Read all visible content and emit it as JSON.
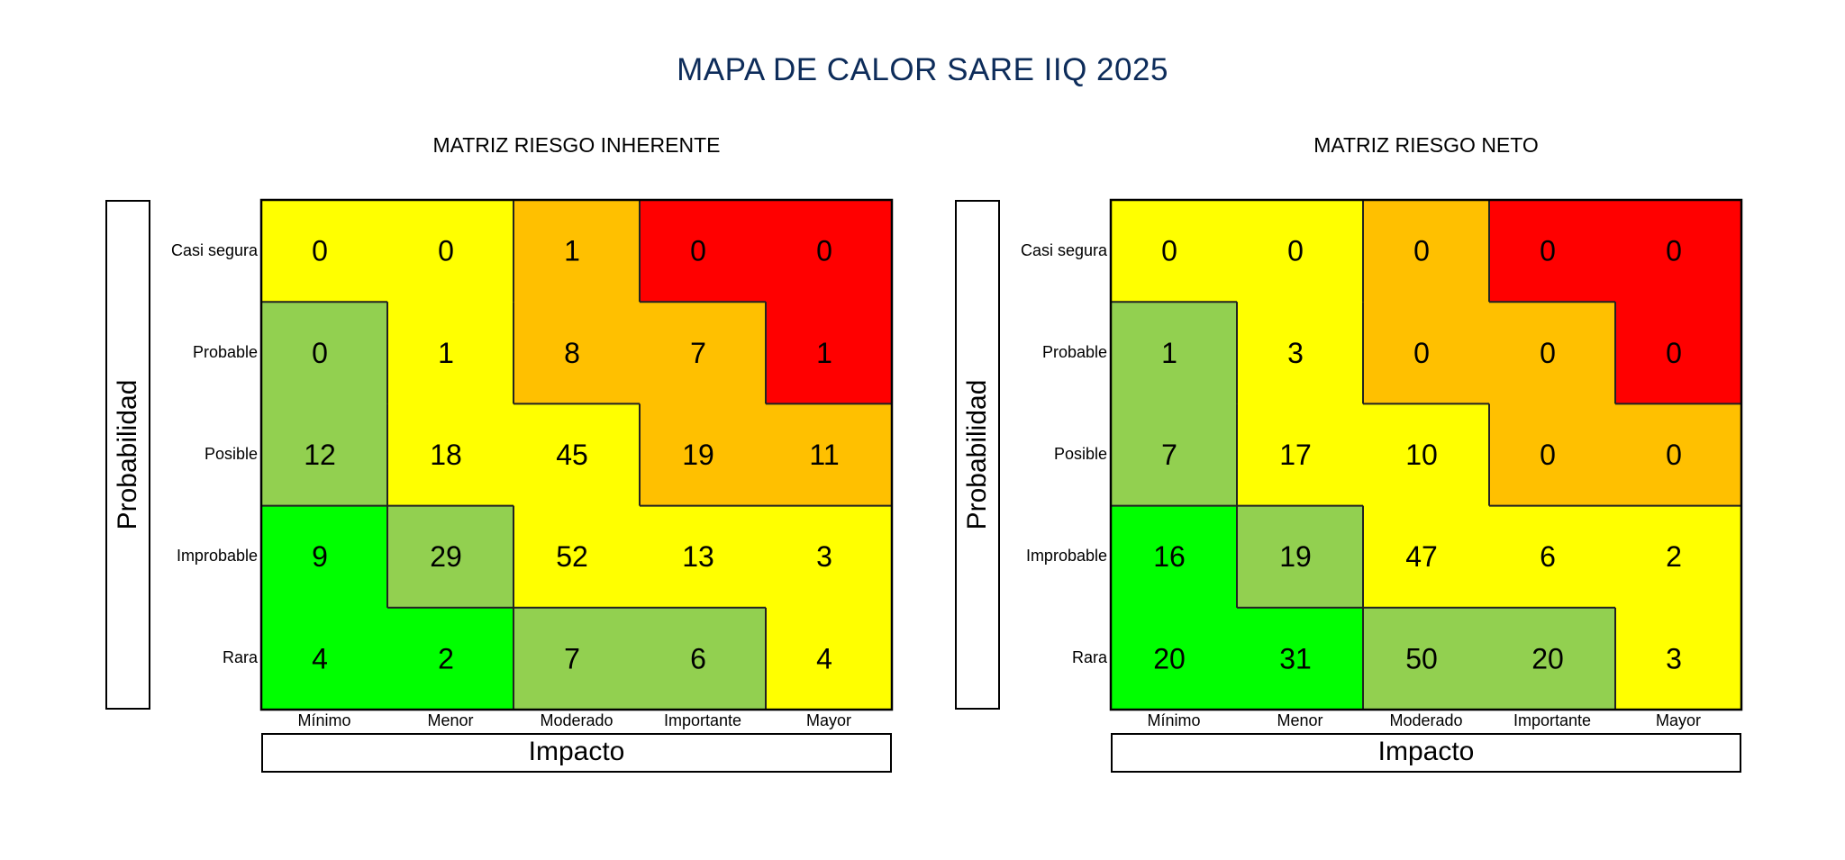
{
  "title": "MAPA DE CALOR SARE IIQ 2025",
  "chart_data": [
    {
      "type": "heatmap",
      "title": "MATRIZ RIESGO INHERENTE",
      "xlabel": "Impacto",
      "ylabel": "Probabilidad",
      "x_categories": [
        "Mínimo",
        "Menor",
        "Moderado",
        "Importante",
        "Mayor"
      ],
      "y_categories": [
        "Casi segura",
        "Probable",
        "Posible",
        "Improbable",
        "Rara"
      ],
      "values": [
        [
          0,
          0,
          1,
          0,
          0
        ],
        [
          0,
          1,
          8,
          7,
          1
        ],
        [
          12,
          18,
          45,
          19,
          11
        ],
        [
          9,
          29,
          52,
          13,
          3
        ],
        [
          4,
          2,
          7,
          6,
          4
        ]
      ],
      "zones": [
        [
          "Y",
          "Y",
          "O",
          "R",
          "R"
        ],
        [
          "L",
          "Y",
          "O",
          "O",
          "R"
        ],
        [
          "L",
          "Y",
          "Y",
          "O",
          "O"
        ],
        [
          "G",
          "L",
          "Y",
          "Y",
          "Y"
        ],
        [
          "G",
          "G",
          "L",
          "L",
          "Y"
        ]
      ]
    },
    {
      "type": "heatmap",
      "title": "MATRIZ RIESGO NETO",
      "xlabel": "Impacto",
      "ylabel": "Probabilidad",
      "x_categories": [
        "Mínimo",
        "Menor",
        "Moderado",
        "Importante",
        "Mayor"
      ],
      "y_categories": [
        "Casi segura",
        "Probable",
        "Posible",
        "Improbable",
        "Rara"
      ],
      "values": [
        [
          0,
          0,
          0,
          0,
          0
        ],
        [
          1,
          3,
          0,
          0,
          0
        ],
        [
          7,
          17,
          10,
          0,
          0
        ],
        [
          16,
          19,
          47,
          6,
          2
        ],
        [
          20,
          31,
          50,
          20,
          3
        ]
      ],
      "zones": [
        [
          "Y",
          "Y",
          "O",
          "R",
          "R"
        ],
        [
          "L",
          "Y",
          "O",
          "O",
          "R"
        ],
        [
          "L",
          "Y",
          "Y",
          "O",
          "O"
        ],
        [
          "G",
          "L",
          "Y",
          "Y",
          "Y"
        ],
        [
          "G",
          "G",
          "L",
          "L",
          "Y"
        ]
      ]
    }
  ],
  "zone_colors": {
    "G": "#00ff00",
    "L": "#92d050",
    "Y": "#ffff00",
    "O": "#ffc000",
    "R": "#ff0000"
  },
  "title_color": "#0d2c5a"
}
